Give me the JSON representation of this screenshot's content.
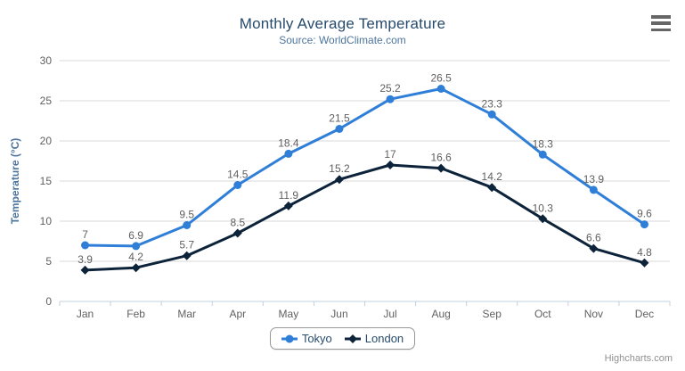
{
  "header": {
    "title": "Monthly Average Temperature",
    "subtitle": "Source: WorldClimate.com"
  },
  "menu": {
    "icon": "hamburger-menu-icon"
  },
  "chart_data": {
    "type": "line",
    "categories": [
      "Jan",
      "Feb",
      "Mar",
      "Apr",
      "May",
      "Jun",
      "Jul",
      "Aug",
      "Sep",
      "Oct",
      "Nov",
      "Dec"
    ],
    "series": [
      {
        "name": "Tokyo",
        "color": "#2f7ed8",
        "marker": "circle",
        "values": [
          7,
          6.9,
          9.5,
          14.5,
          18.4,
          21.5,
          25.2,
          26.5,
          23.3,
          18.3,
          13.9,
          9.6
        ]
      },
      {
        "name": "London",
        "color": "#0d233a",
        "marker": "diamond",
        "values": [
          3.9,
          4.2,
          5.7,
          8.5,
          11.9,
          15.2,
          17,
          16.6,
          14.2,
          10.3,
          6.6,
          4.8
        ]
      }
    ],
    "title": "Monthly Average Temperature",
    "subtitle": "Source: WorldClimate.com",
    "xlabel": "",
    "ylabel": "Temperature (°C)",
    "ylim": [
      0,
      30
    ],
    "yticks": [
      0,
      5,
      10,
      15,
      20,
      25,
      30
    ],
    "grid": true,
    "data_labels": true,
    "legend_position": "bottom"
  },
  "colors": {
    "grid": "#d8d8d8",
    "axis_line": "#c0d0e0",
    "tick": "#c0d0e0",
    "axis_label": "#606060",
    "data_label": "#606060",
    "axis_title": "#4d759e",
    "legend_text": "#274b6d",
    "credits_text": "#909090"
  },
  "credits": {
    "label": "Highcharts.com"
  }
}
